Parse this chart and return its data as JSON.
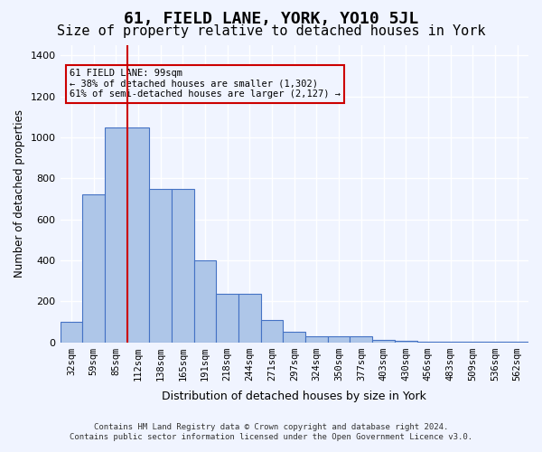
{
  "title": "61, FIELD LANE, YORK, YO10 5JL",
  "subtitle": "Size of property relative to detached houses in York",
  "xlabel": "Distribution of detached houses by size in York",
  "ylabel": "Number of detached properties",
  "categories": [
    "32sqm",
    "59sqm",
    "85sqm",
    "112sqm",
    "138sqm",
    "165sqm",
    "191sqm",
    "218sqm",
    "244sqm",
    "271sqm",
    "297sqm",
    "324sqm",
    "350sqm",
    "377sqm",
    "403sqm",
    "430sqm",
    "456sqm",
    "483sqm",
    "509sqm",
    "536sqm",
    "562sqm"
  ],
  "values": [
    100,
    720,
    1050,
    1050,
    750,
    750,
    400,
    235,
    235,
    110,
    50,
    30,
    30,
    30,
    10,
    5,
    2,
    2,
    1,
    1,
    1
  ],
  "bar_color": "#aec6e8",
  "bar_edge_color": "#4472c4",
  "vline_x": 2.85,
  "vline_color": "#cc0000",
  "annotation_text": "61 FIELD LANE: 99sqm\n← 38% of detached houses are smaller (1,302)\n61% of semi-detached houses are larger (2,127) →",
  "annotation_box_color": "#cc0000",
  "ylim": [
    0,
    1450
  ],
  "yticks": [
    0,
    200,
    400,
    600,
    800,
    1000,
    1200,
    1400
  ],
  "footer_line1": "Contains HM Land Registry data © Crown copyright and database right 2024.",
  "footer_line2": "Contains public sector information licensed under the Open Government Licence v3.0.",
  "bg_color": "#f0f4ff",
  "grid_color": "#ffffff",
  "title_fontsize": 13,
  "subtitle_fontsize": 11
}
